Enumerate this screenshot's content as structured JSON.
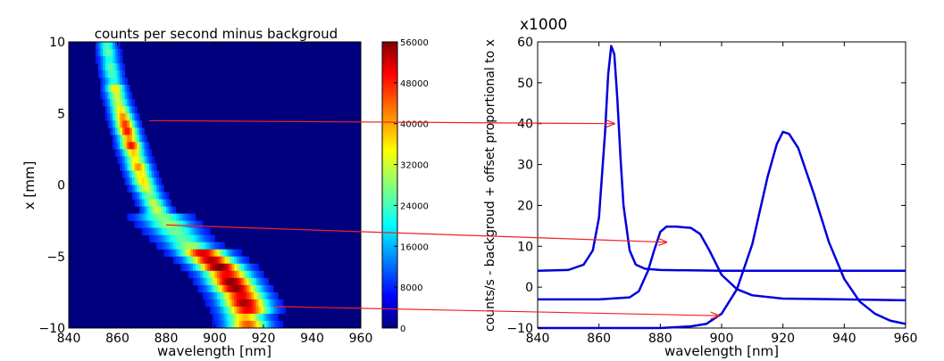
{
  "chart_data": [
    {
      "type": "heatmap",
      "title": "counts per second minus backgroud",
      "xlabel": "wavelength [nm]",
      "ylabel": "x [mm]",
      "xlim": [
        840,
        960
      ],
      "ylim": [
        -10,
        10
      ],
      "x_ticks": [
        "840",
        "860",
        "880",
        "900",
        "920",
        "940",
        "960"
      ],
      "y_ticks": [
        "10",
        "5",
        "0",
        "−5",
        "−10"
      ],
      "colormap": "jet",
      "colorbar": {
        "range": [
          0,
          56000
        ],
        "ticks": [
          "56000",
          "48000",
          "40000",
          "32000",
          "24000",
          "16000",
          "8000",
          "0"
        ]
      },
      "ridge": [
        {
          "x": 10,
          "w": 855.5
        },
        {
          "x": 8,
          "w": 857.5
        },
        {
          "x": 6,
          "w": 860
        },
        {
          "x": 4,
          "w": 863.5
        },
        {
          "x": 2,
          "w": 867
        },
        {
          "x": 0,
          "w": 871
        },
        {
          "x": -2,
          "w": 877
        },
        {
          "x": -4,
          "w": 888
        },
        {
          "x": -6,
          "w": 902
        },
        {
          "x": -8,
          "w": 910
        },
        {
          "x": -10,
          "w": 914
        }
      ]
    },
    {
      "type": "line",
      "xlabel": "wavelength [nm]",
      "ylabel": "counts/s - backgroud + offset proportional to x",
      "y_scale_label": "x1000",
      "xlim": [
        840,
        960
      ],
      "ylim": [
        -10,
        60
      ],
      "x_ticks": [
        "840",
        "860",
        "880",
        "900",
        "920",
        "940",
        "960"
      ],
      "y_ticks": [
        "60",
        "50",
        "40",
        "30",
        "20",
        "10",
        "0",
        "−10"
      ],
      "line_color": "#0000dd",
      "series": [
        {
          "x": [
            840,
            850,
            855,
            858,
            860,
            862,
            863,
            864,
            865,
            866,
            867,
            868,
            870,
            872,
            875,
            880,
            900,
            960
          ],
          "y": [
            4,
            4.2,
            5.5,
            9,
            17,
            38,
            52,
            59,
            57,
            46,
            32,
            20,
            9,
            5.5,
            4.5,
            4.2,
            4,
            4
          ]
        },
        {
          "x": [
            840,
            860,
            870,
            873,
            876,
            878,
            880,
            882,
            885,
            890,
            893,
            896,
            900,
            905,
            910,
            920,
            940,
            960
          ],
          "y": [
            -3,
            -3,
            -2.5,
            -1,
            4,
            9,
            13.5,
            14.8,
            14.8,
            14.5,
            13,
            9,
            3,
            -0.5,
            -2,
            -2.8,
            -3,
            -3.2
          ]
        },
        {
          "x": [
            840,
            880,
            890,
            895,
            900,
            905,
            910,
            915,
            918,
            920,
            922,
            925,
            930,
            935,
            940,
            945,
            950,
            955,
            960
          ],
          "y": [
            -10,
            -10,
            -9.6,
            -9,
            -6.5,
            -0.5,
            10.5,
            27,
            35,
            38,
            37.5,
            34,
            23,
            11,
            2,
            -3.5,
            -6.5,
            -8.2,
            -9
          ]
        }
      ]
    }
  ],
  "annotations": {
    "arrow_color": "#ee2222",
    "arrows": [
      {
        "from_x_mm": 4.5,
        "from_nm": 873,
        "to_nm": 865,
        "to_y": 40
      },
      {
        "from_x_mm": -2.8,
        "from_nm": 880,
        "to_nm": 882,
        "to_y": 11
      },
      {
        "from_x_mm": -8.5,
        "from_nm": 925,
        "to_nm": 899,
        "to_y": -7
      }
    ]
  }
}
